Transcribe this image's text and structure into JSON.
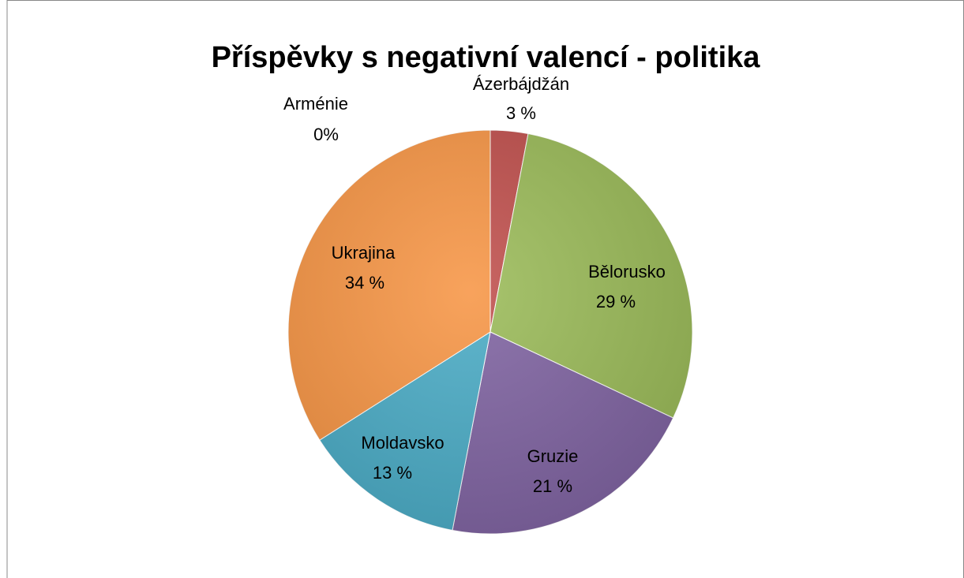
{
  "chart_data": {
    "type": "pie",
    "title": "Příspěvky s negativní valencí - politika",
    "categories": [
      "Arménie",
      "Ázerbájdžán",
      "Bělorusko",
      "Gruzie",
      "Moldavsko",
      "Ukrajina"
    ],
    "values": [
      0,
      3,
      29,
      21,
      13,
      34
    ],
    "value_labels": [
      "0%",
      "3 %",
      "29 %",
      "21 %",
      "13 %",
      "34 %"
    ],
    "colors": [
      "#4f81bd",
      "#c0504d",
      "#9bbb59",
      "#8064a2",
      "#4bacc6",
      "#f79646"
    ]
  }
}
